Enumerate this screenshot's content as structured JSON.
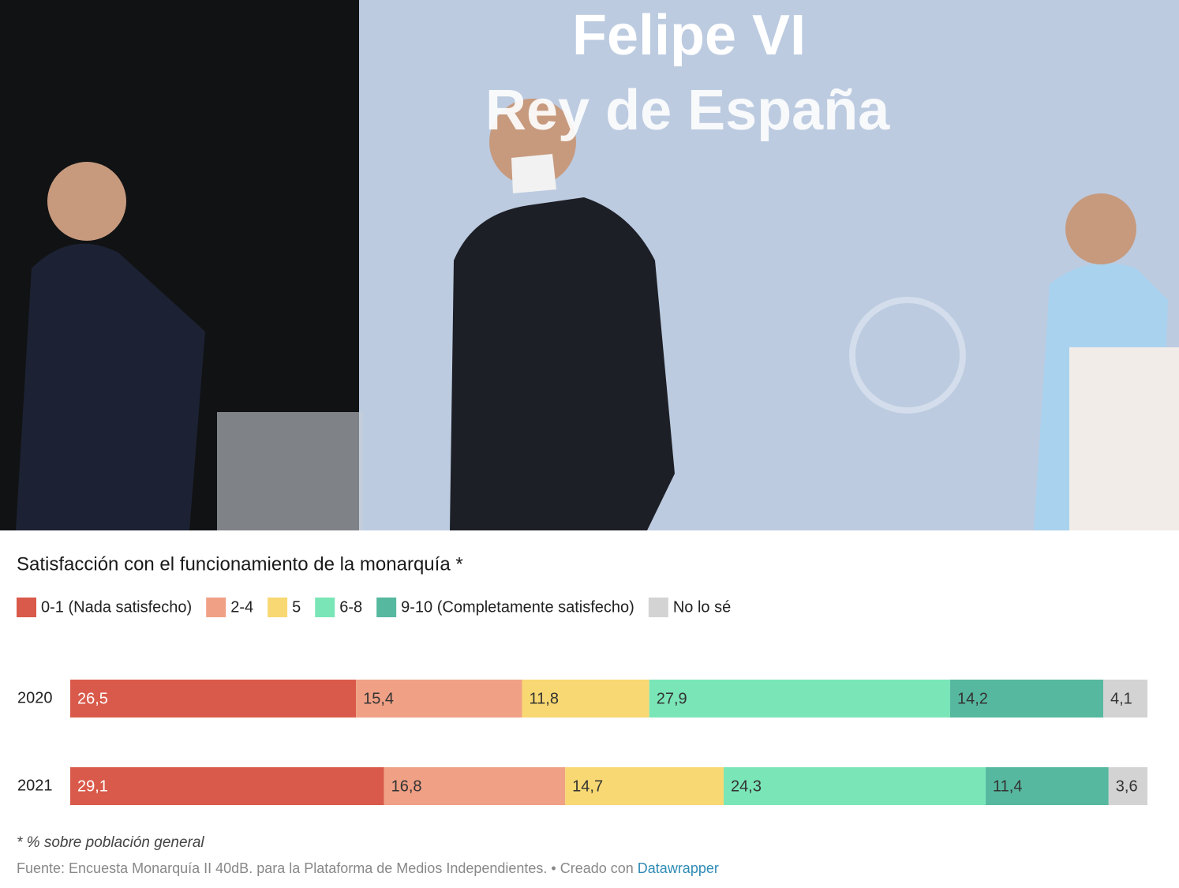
{
  "photo": {
    "headline": [
      "Felipe VI",
      "Rey de España"
    ]
  },
  "chart_data": {
    "type": "stacked_bar",
    "title": "Satisfacción con el funcionamiento de la monarquía *",
    "categories": [
      "2020",
      "2021"
    ],
    "series": [
      {
        "name": "0-1 (Nada satisfecho)",
        "color": "#d95a4a",
        "values": [
          26.5,
          29.1
        ],
        "value_labels": [
          "26,5",
          "29,1"
        ]
      },
      {
        "name": "2-4",
        "color": "#f0a085",
        "values": [
          15.4,
          16.8
        ],
        "value_labels": [
          "15,4",
          "16,8"
        ]
      },
      {
        "name": "5",
        "color": "#f8d872",
        "values": [
          11.8,
          14.7
        ],
        "value_labels": [
          "11,8",
          "14,7"
        ]
      },
      {
        "name": "6-8",
        "color": "#7ae6b8",
        "values": [
          27.9,
          24.3
        ],
        "value_labels": [
          "27,9",
          "24,3"
        ]
      },
      {
        "name": "9-10 (Completamente satisfecho)",
        "color": "#56b89f",
        "values": [
          14.2,
          11.4
        ],
        "value_labels": [
          "14,2",
          "11,4"
        ]
      },
      {
        "name": "No lo sé",
        "color": "#d3d3d3",
        "values": [
          4.1,
          3.6
        ],
        "value_labels": [
          "4,1",
          "3,6"
        ]
      }
    ],
    "note": "* % sobre población general",
    "source": "Fuente: Encuesta Monarquía II 40dB. para la Plataforma de Medios Independientes. • Creado con",
    "credit": "Datawrapper"
  }
}
